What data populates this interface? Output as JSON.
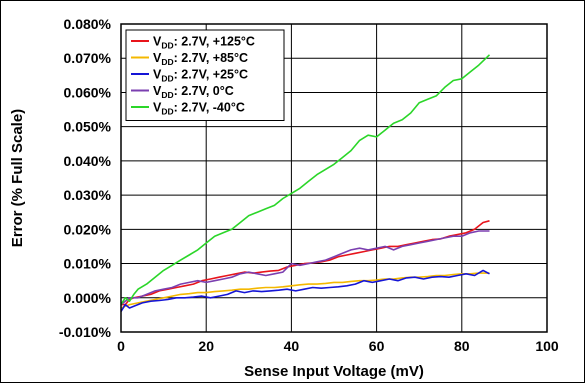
{
  "chart_data": {
    "type": "line",
    "xlabel": "Sense Input Voltage (mV)",
    "ylabel": "Error (% Full Scale)",
    "xlim": [
      0,
      100
    ],
    "ylim": [
      -0.01,
      0.08
    ],
    "x_ticks": [
      "0",
      "20",
      "40",
      "60",
      "80",
      "100"
    ],
    "y_ticks": [
      "-0.010%",
      "0.000%",
      "0.010%",
      "0.020%",
      "0.030%",
      "0.040%",
      "0.050%",
      "0.060%",
      "0.070%",
      "0.080%"
    ],
    "grid": true,
    "legend_position": "top-left",
    "series": [
      {
        "name": "V_DD: 2.7V, +125°C",
        "legend_main": "V",
        "legend_sub": "DD",
        "legend_rest": ": 2.7V, +125°C",
        "color": "#e8141b",
        "points": [
          [
            0,
            -0.002
          ],
          [
            1,
            -0.002
          ],
          [
            2,
            -0.0005
          ],
          [
            3,
            0.0
          ],
          [
            5,
            0.0005
          ],
          [
            7,
            0.001
          ],
          [
            9,
            0.002
          ],
          [
            11,
            0.0025
          ],
          [
            13,
            0.003
          ],
          [
            15,
            0.0035
          ],
          [
            17,
            0.004
          ],
          [
            19,
            0.005
          ],
          [
            21,
            0.0055
          ],
          [
            23,
            0.006
          ],
          [
            25,
            0.0065
          ],
          [
            27,
            0.007
          ],
          [
            29,
            0.0075
          ],
          [
            31,
            0.0072
          ],
          [
            33,
            0.0075
          ],
          [
            35,
            0.0078
          ],
          [
            37,
            0.008
          ],
          [
            39,
            0.009
          ],
          [
            41,
            0.0095
          ],
          [
            43,
            0.01
          ],
          [
            45,
            0.0102
          ],
          [
            47,
            0.0105
          ],
          [
            49,
            0.011
          ],
          [
            51,
            0.012
          ],
          [
            53,
            0.0125
          ],
          [
            55,
            0.013
          ],
          [
            57,
            0.0135
          ],
          [
            59,
            0.014
          ],
          [
            61,
            0.0145
          ],
          [
            63,
            0.015
          ],
          [
            65,
            0.015
          ],
          [
            67,
            0.0155
          ],
          [
            69,
            0.016
          ],
          [
            71,
            0.0165
          ],
          [
            73,
            0.017
          ],
          [
            75,
            0.0172
          ],
          [
            77,
            0.018
          ],
          [
            79,
            0.0185
          ],
          [
            81,
            0.019
          ],
          [
            83,
            0.02
          ],
          [
            85,
            0.022
          ],
          [
            86.5,
            0.0225
          ]
        ]
      },
      {
        "name": "V_DD: 2.7V, +85°C",
        "legend_main": "V",
        "legend_sub": "DD",
        "legend_rest": ": 2.7V, +85°C",
        "color": "#f4b800",
        "points": [
          [
            0,
            -0.003
          ],
          [
            2,
            -0.002
          ],
          [
            4,
            -0.0015
          ],
          [
            6,
            -0.001
          ],
          [
            8,
            -0.0005
          ],
          [
            10,
            0.0
          ],
          [
            12,
            0.0005
          ],
          [
            14,
            0.001
          ],
          [
            16,
            0.0012
          ],
          [
            18,
            0.0015
          ],
          [
            20,
            0.0015
          ],
          [
            22,
            0.0018
          ],
          [
            24,
            0.002
          ],
          [
            26,
            0.0022
          ],
          [
            28,
            0.0025
          ],
          [
            30,
            0.0025
          ],
          [
            32,
            0.0028
          ],
          [
            34,
            0.003
          ],
          [
            36,
            0.003
          ],
          [
            38,
            0.0032
          ],
          [
            40,
            0.0035
          ],
          [
            42,
            0.0038
          ],
          [
            44,
            0.004
          ],
          [
            46,
            0.004
          ],
          [
            48,
            0.0042
          ],
          [
            50,
            0.0045
          ],
          [
            52,
            0.0045
          ],
          [
            54,
            0.0048
          ],
          [
            56,
            0.005
          ],
          [
            58,
            0.005
          ],
          [
            60,
            0.0052
          ],
          [
            62,
            0.0055
          ],
          [
            64,
            0.0055
          ],
          [
            66,
            0.0058
          ],
          [
            68,
            0.006
          ],
          [
            70,
            0.006
          ],
          [
            72,
            0.0062
          ],
          [
            74,
            0.0065
          ],
          [
            76,
            0.0065
          ],
          [
            78,
            0.0068
          ],
          [
            80,
            0.007
          ],
          [
            82,
            0.007
          ],
          [
            84,
            0.0072
          ],
          [
            86.5,
            0.0072
          ]
        ]
      },
      {
        "name": "V_DD: 2.7V, +25°C",
        "legend_main": "V",
        "legend_sub": "DD",
        "legend_rest": ": 2.7V, +25°C",
        "color": "#1515d6",
        "points": [
          [
            0,
            -0.004
          ],
          [
            1,
            -0.002
          ],
          [
            2,
            -0.003
          ],
          [
            3,
            -0.0025
          ],
          [
            5,
            -0.0015
          ],
          [
            7,
            -0.001
          ],
          [
            9,
            -0.0008
          ],
          [
            11,
            -0.0005
          ],
          [
            13,
            0.0
          ],
          [
            15,
            0.0
          ],
          [
            17,
            0.0002
          ],
          [
            19,
            0.0005
          ],
          [
            21,
            0.0
          ],
          [
            23,
            0.0005
          ],
          [
            25,
            0.001
          ],
          [
            27,
            0.002
          ],
          [
            29,
            0.0015
          ],
          [
            31,
            0.002
          ],
          [
            33,
            0.0018
          ],
          [
            35,
            0.002
          ],
          [
            37,
            0.0022
          ],
          [
            39,
            0.0025
          ],
          [
            41,
            0.002
          ],
          [
            43,
            0.0025
          ],
          [
            45,
            0.003
          ],
          [
            47,
            0.0028
          ],
          [
            49,
            0.003
          ],
          [
            51,
            0.0032
          ],
          [
            53,
            0.0035
          ],
          [
            55,
            0.004
          ],
          [
            57,
            0.005
          ],
          [
            59,
            0.0045
          ],
          [
            61,
            0.005
          ],
          [
            63,
            0.0055
          ],
          [
            65,
            0.005
          ],
          [
            67,
            0.0058
          ],
          [
            69,
            0.006
          ],
          [
            71,
            0.0055
          ],
          [
            73,
            0.006
          ],
          [
            75,
            0.0062
          ],
          [
            77,
            0.006
          ],
          [
            79,
            0.0065
          ],
          [
            81,
            0.007
          ],
          [
            83,
            0.0065
          ],
          [
            85,
            0.008
          ],
          [
            86.5,
            0.007
          ]
        ]
      },
      {
        "name": "V_DD: 2.7V, 0°C",
        "legend_main": "V",
        "legend_sub": "DD",
        "legend_rest": ": 2.7V, 0°C",
        "color": "#7b3fb0",
        "points": [
          [
            0,
            -0.002
          ],
          [
            1,
            -0.001
          ],
          [
            2,
            0.0
          ],
          [
            4,
            0.0
          ],
          [
            6,
            0.001
          ],
          [
            8,
            0.002
          ],
          [
            10,
            0.0025
          ],
          [
            12,
            0.003
          ],
          [
            14,
            0.004
          ],
          [
            16,
            0.0045
          ],
          [
            18,
            0.005
          ],
          [
            20,
            0.0045
          ],
          [
            22,
            0.005
          ],
          [
            24,
            0.0055
          ],
          [
            26,
            0.006
          ],
          [
            28,
            0.007
          ],
          [
            30,
            0.0075
          ],
          [
            32,
            0.007
          ],
          [
            34,
            0.0065
          ],
          [
            36,
            0.007
          ],
          [
            38,
            0.0075
          ],
          [
            40,
            0.01
          ],
          [
            42,
            0.0095
          ],
          [
            44,
            0.01
          ],
          [
            46,
            0.0105
          ],
          [
            48,
            0.011
          ],
          [
            50,
            0.012
          ],
          [
            52,
            0.013
          ],
          [
            54,
            0.014
          ],
          [
            56,
            0.0145
          ],
          [
            58,
            0.014
          ],
          [
            60,
            0.0145
          ],
          [
            62,
            0.015
          ],
          [
            64,
            0.014
          ],
          [
            66,
            0.015
          ],
          [
            68,
            0.0155
          ],
          [
            70,
            0.016
          ],
          [
            72,
            0.0165
          ],
          [
            74,
            0.017
          ],
          [
            76,
            0.0175
          ],
          [
            78,
            0.018
          ],
          [
            80,
            0.018
          ],
          [
            82,
            0.019
          ],
          [
            84,
            0.0195
          ],
          [
            86.5,
            0.0195
          ]
        ]
      },
      {
        "name": "V_DD: 2.7V, -40°C",
        "legend_main": "V",
        "legend_sub": "DD",
        "legend_rest": ": 2.7V, -40°C",
        "color": "#2bd629",
        "points": [
          [
            0,
            -0.002
          ],
          [
            1,
            0.0
          ],
          [
            2,
            -0.001
          ],
          [
            3,
            0.001
          ],
          [
            4,
            0.0025
          ],
          [
            6,
            0.004
          ],
          [
            8,
            0.006
          ],
          [
            10,
            0.008
          ],
          [
            12,
            0.0095
          ],
          [
            14,
            0.011
          ],
          [
            16,
            0.0125
          ],
          [
            18,
            0.014
          ],
          [
            20,
            0.016
          ],
          [
            22,
            0.018
          ],
          [
            24,
            0.019
          ],
          [
            26,
            0.02
          ],
          [
            28,
            0.022
          ],
          [
            30,
            0.024
          ],
          [
            32,
            0.025
          ],
          [
            34,
            0.026
          ],
          [
            36,
            0.027
          ],
          [
            38,
            0.029
          ],
          [
            40,
            0.0305
          ],
          [
            42,
            0.032
          ],
          [
            44,
            0.034
          ],
          [
            46,
            0.036
          ],
          [
            48,
            0.0375
          ],
          [
            50,
            0.039
          ],
          [
            52,
            0.041
          ],
          [
            54,
            0.043
          ],
          [
            56,
            0.046
          ],
          [
            58,
            0.0475
          ],
          [
            60,
            0.047
          ],
          [
            62,
            0.049
          ],
          [
            64,
            0.051
          ],
          [
            66,
            0.052
          ],
          [
            68,
            0.054
          ],
          [
            70,
            0.057
          ],
          [
            72,
            0.058
          ],
          [
            74,
            0.059
          ],
          [
            76,
            0.0615
          ],
          [
            78,
            0.0635
          ],
          [
            80,
            0.064
          ],
          [
            82,
            0.066
          ],
          [
            84,
            0.068
          ],
          [
            86.5,
            0.071
          ]
        ]
      }
    ]
  }
}
